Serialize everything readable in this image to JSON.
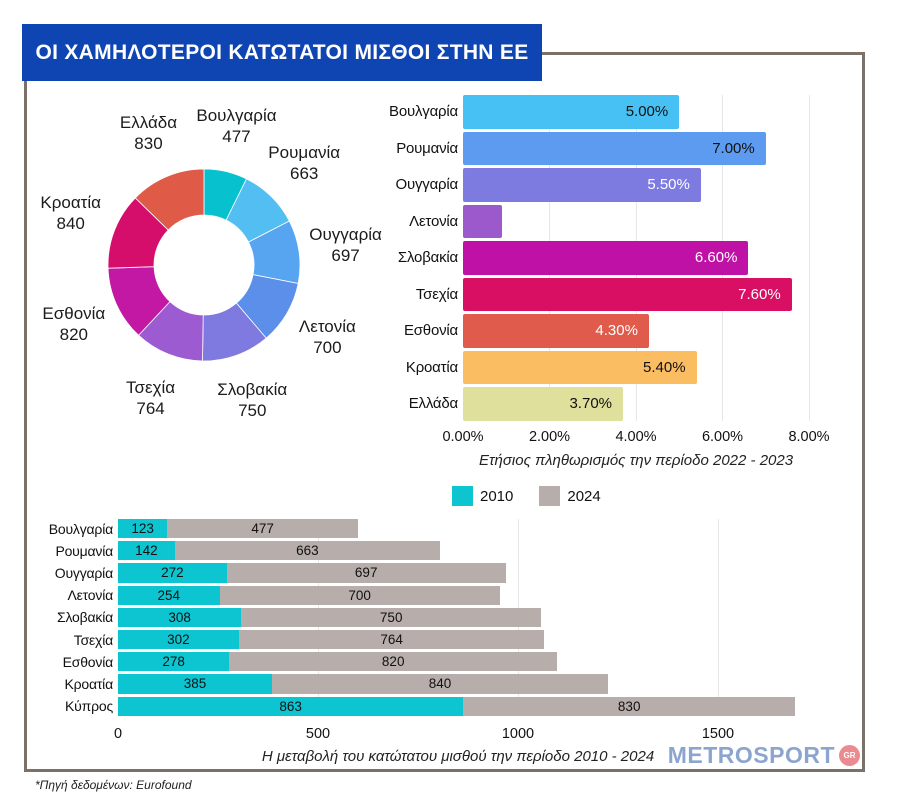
{
  "title": "ΟΙ ΧΑΜΗΛΟΤΕΡΟΙ ΚΑΤΩΤΑΤΟΙ ΜΙΣΘΟΙ ΣΤΗΝ ΕΕ",
  "source_note": "*Πηγή δεδομένων: Eurofound",
  "logo": {
    "text": "METROSPORT",
    "badge": "GR",
    "text_color": "#8CA5CE",
    "badge_color": "#EA8B90"
  },
  "theme": {
    "banner_bg": "#0F45B2",
    "banner_text": "#FFFFFF",
    "frame_border": "#7C7168",
    "grid_line": "#E7E7E7"
  },
  "chart_data": [
    {
      "type": "pie",
      "subtype": "donut",
      "name": "minimum-wages-donut",
      "categories": [
        "Βουλγαρία",
        "Ρουμανία",
        "Ουγγαρία",
        "Λετονία",
        "Σλοβακία",
        "Τσεχία",
        "Εσθονία",
        "Κροατία",
        "Ελλάδα"
      ],
      "values": [
        477,
        663,
        697,
        700,
        750,
        764,
        820,
        840,
        830
      ],
      "colors": [
        "#07C2CE",
        "#52BEF2",
        "#57A5F0",
        "#5B8FEA",
        "#7F7ADF",
        "#9D5BD2",
        "#C318A4",
        "#D60E6B",
        "#DF5A47"
      ],
      "start_angle_deg": 0,
      "direction": "clockwise",
      "labels_show": "name-and-value"
    },
    {
      "type": "bar",
      "orientation": "horizontal",
      "name": "inflation-2022-2023",
      "title": "Ετήσιος πληθωρισμός  την περίοδο 2022 - 2023",
      "categories": [
        "Βουλγαρία",
        "Ρουμανία",
        "Ουγγαρία",
        "Λετονία",
        "Σλοβακία",
        "Τσεχία",
        "Εσθονία",
        "Κροατία",
        "Ελλάδα"
      ],
      "values": [
        5.0,
        7.0,
        5.5,
        0.9,
        6.6,
        7.6,
        4.3,
        5.4,
        3.7
      ],
      "bar_labels": [
        "5.00%",
        "7.00%",
        "5.50%",
        "",
        "6.60%",
        "7.60%",
        "4.30%",
        "5.40%",
        "3.70%"
      ],
      "bar_label_colors": [
        "#111111",
        "#111111",
        "#FFFFFF",
        "",
        "#FFFFFF",
        "#FFFFFF",
        "#FFFFFF",
        "#111111",
        "#111111"
      ],
      "colors": [
        "#47C0F3",
        "#5C9BEF",
        "#7D7BE0",
        "#9C59CB",
        "#C011A7",
        "#D80F63",
        "#E05B4B",
        "#FBBD62",
        "#DEE09C"
      ],
      "xlim": [
        0,
        8
      ],
      "x_ticks": [
        "0.00%",
        "2.00%",
        "4.00%",
        "6.00%",
        "8.00%"
      ],
      "grid": "vertical"
    },
    {
      "type": "bar",
      "orientation": "horizontal",
      "stacked": true,
      "name": "minimum-wage-change-2010-2024",
      "title": "Η μεταβολή του κατώτατου μισθού την περίοδο 2010 - 2024",
      "categories": [
        "Βουλγαρία",
        "Ρουμανία",
        "Ουγγαρία",
        "Λετονία",
        "Σλοβακία",
        "Τσεχία",
        "Εσθονία",
        "Κροατία",
        "Κύπρος"
      ],
      "series": [
        {
          "name": "2010",
          "color": "#0DC5D1",
          "values": [
            123,
            142,
            272,
            254,
            308,
            302,
            278,
            385,
            863
          ]
        },
        {
          "name": "2024",
          "color": "#B7ADAB",
          "values": [
            477,
            663,
            697,
            700,
            750,
            764,
            820,
            840,
            830
          ]
        }
      ],
      "xlim": [
        0,
        1700
      ],
      "x_ticks": [
        0,
        500,
        1000,
        1500
      ],
      "legend_position": "top",
      "grid": "vertical"
    }
  ]
}
